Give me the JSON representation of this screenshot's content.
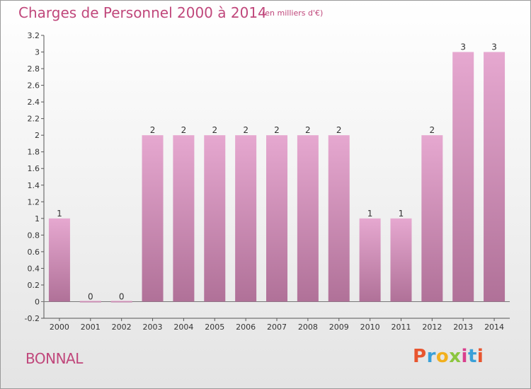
{
  "header": {
    "title": "Charges de Personnel 2000 à 2014",
    "subtitle": "(en milliers d'€)"
  },
  "footer": {
    "commune": "BONNAL",
    "logo_letters": [
      "P",
      "r",
      "o",
      "x",
      "i",
      "t",
      "i"
    ],
    "logo_colors": [
      "#e8552f",
      "#3aa0d8",
      "#f2b01e",
      "#8cc63f",
      "#d9408e",
      "#3aa0d8",
      "#e8552f"
    ]
  },
  "colors": {
    "bar_top": "#e6a8d0",
    "bar_bottom": "#b07198",
    "text_accent": "#c0477b"
  },
  "chart_data": {
    "type": "bar",
    "title": "Charges de Personnel 2000 à 2014",
    "subtitle": "(en milliers d'€)",
    "xlabel": "",
    "ylabel": "",
    "categories": [
      "2000",
      "2001",
      "2002",
      "2003",
      "2004",
      "2005",
      "2006",
      "2007",
      "2008",
      "2009",
      "2010",
      "2011",
      "2012",
      "2013",
      "2014"
    ],
    "values": [
      1,
      0,
      0,
      2,
      2,
      2,
      2,
      2,
      2,
      2,
      1,
      1,
      2,
      3,
      3
    ],
    "data_labels": [
      "1",
      "0",
      "0",
      "2",
      "2",
      "2",
      "2",
      "2",
      "2",
      "2",
      "1",
      "1",
      "2",
      "3",
      "3"
    ],
    "ylim": [
      -0.2,
      3.2
    ],
    "yticks": [
      -0.2,
      0,
      0.2,
      0.4,
      0.6,
      0.8,
      1,
      1.2,
      1.4,
      1.6,
      1.8,
      2,
      2.2,
      2.4,
      2.6,
      2.8,
      3,
      3.2
    ],
    "ytick_labels": [
      "-0.2",
      "0",
      "0.2",
      "0.4",
      "0.6",
      "0.8",
      "1",
      "1.2",
      "1.4",
      "1.6",
      "1.8",
      "2",
      "2.2",
      "2.4",
      "2.6",
      "2.8",
      "3",
      "3.2"
    ],
    "grid": false,
    "legend": "none"
  }
}
